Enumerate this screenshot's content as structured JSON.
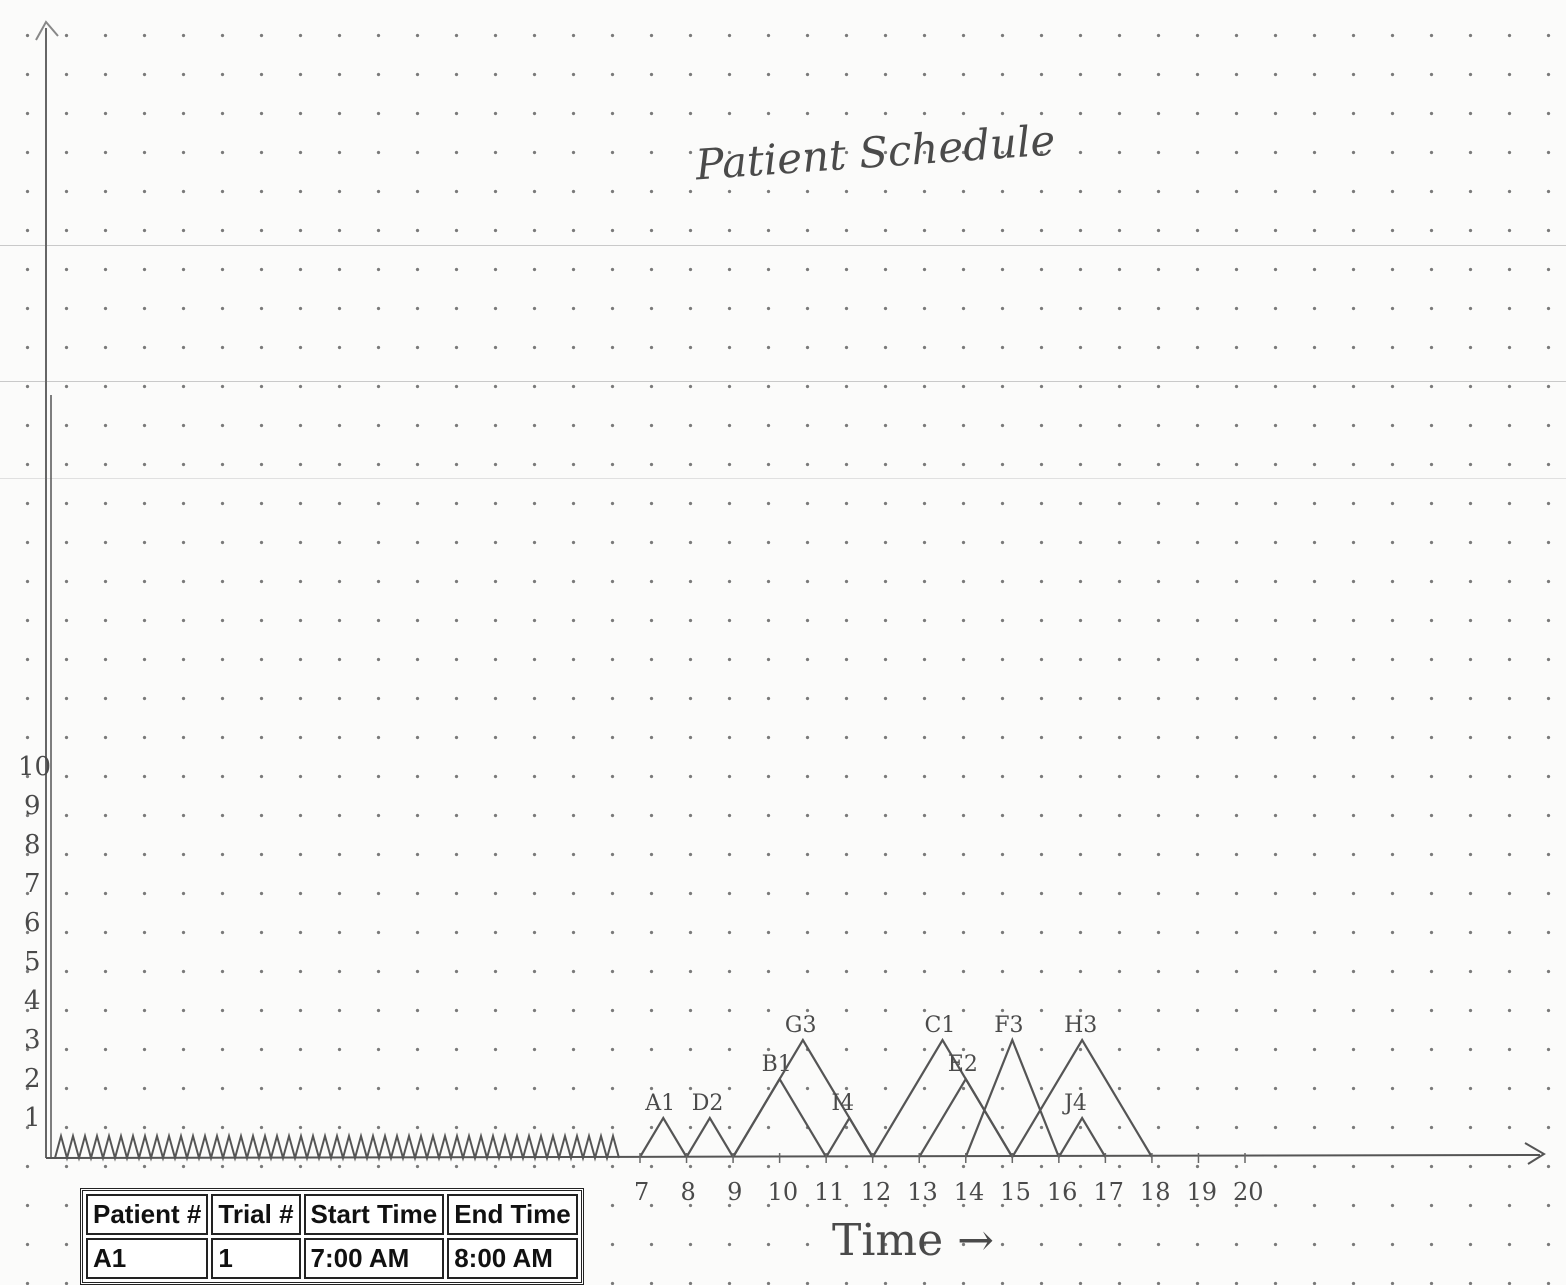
{
  "title": "Patient Schedule",
  "chart_data": {
    "type": "line",
    "xlabel": "Time →",
    "ylabel": "",
    "x_ticks": [
      "7",
      "8",
      "9",
      "10",
      "11",
      "12",
      "13",
      "14",
      "15",
      "16",
      "17",
      "18",
      "19",
      "20"
    ],
    "y_ticks": [
      "1",
      "2",
      "3",
      "4",
      "5",
      "6",
      "7",
      "8",
      "9",
      "10"
    ],
    "xlim": [
      7,
      20
    ],
    "ylim": [
      0,
      10
    ],
    "peaks": [
      {
        "label": "A1",
        "start": 7,
        "end": 8,
        "height": 1
      },
      {
        "label": "D2",
        "start": 8,
        "end": 9,
        "height": 1
      },
      {
        "label": "B1",
        "start": 9,
        "end": 11,
        "height": 2
      },
      {
        "label": "G3",
        "start": 9,
        "end": 12,
        "height": 3
      },
      {
        "label": "I4",
        "start": 11,
        "end": 12,
        "height": 1
      },
      {
        "label": "C1",
        "start": 12,
        "end": 15,
        "height": 3
      },
      {
        "label": "E2",
        "start": 13,
        "end": 15,
        "height": 2
      },
      {
        "label": "F3",
        "start": 14,
        "end": 16,
        "height": 3
      },
      {
        "label": "H3",
        "start": 15,
        "end": 18,
        "height": 3
      },
      {
        "label": "J4",
        "start": 16,
        "end": 17,
        "height": 1
      }
    ]
  },
  "table": {
    "headers": [
      "Patient #",
      "Trial #",
      "Start Time",
      "End Time"
    ],
    "rows": [
      [
        "A1",
        "1",
        "7:00 AM",
        "8:00 AM"
      ]
    ]
  }
}
